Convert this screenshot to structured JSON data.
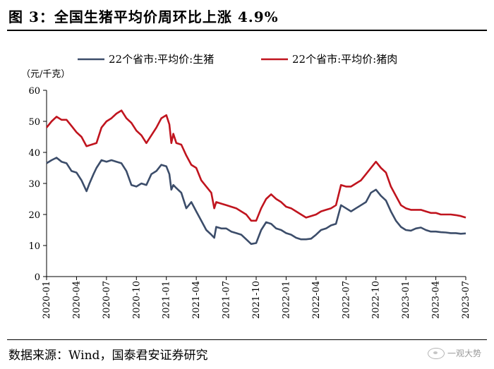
{
  "header": {
    "title": "图 3：全国生猪平均价周环比上涨 4.9%"
  },
  "footer": {
    "source": "数据来源：Wind，国泰君安证券研究",
    "watermark": "一观大势"
  },
  "chart_data": {
    "type": "line",
    "ylabel": "（元/千克）",
    "ylim": [
      0,
      60
    ],
    "yticks": [
      0,
      10,
      20,
      30,
      40,
      50,
      60
    ],
    "xlim": [
      "2020-01",
      "2023-07"
    ],
    "xticks": [
      "2020-01",
      "2020-04",
      "2020-07",
      "2020-10",
      "2021-01",
      "2021-04",
      "2021-07",
      "2021-10",
      "2022-01",
      "2022-04",
      "2022-07",
      "2022-10",
      "2023-01",
      "2023-04",
      "2023-07"
    ],
    "legend_position": "top",
    "grid": false,
    "series": [
      {
        "name": "22个省市:平均价:生猪",
        "color": "#3c4d6a",
        "points": [
          [
            "2020-01",
            36.5
          ],
          [
            "2020-01.5",
            37.5
          ],
          [
            "2020-02",
            38.3
          ],
          [
            "2020-02.5",
            37
          ],
          [
            "2020-03",
            36.5
          ],
          [
            "2020-03.5",
            34
          ],
          [
            "2020-04",
            33.5
          ],
          [
            "2020-04.5",
            31
          ],
          [
            "2020-05",
            27.5
          ],
          [
            "2020-05.3",
            30
          ],
          [
            "2020-05.7",
            33
          ],
          [
            "2020-06",
            35
          ],
          [
            "2020-06.5",
            37.5
          ],
          [
            "2020-07",
            37
          ],
          [
            "2020-07.5",
            37.5
          ],
          [
            "2020-08",
            37
          ],
          [
            "2020-08.5",
            36.5
          ],
          [
            "2020-09",
            34
          ],
          [
            "2020-09.5",
            29.5
          ],
          [
            "2020-10",
            29
          ],
          [
            "2020-10.5",
            30
          ],
          [
            "2020-11",
            29.5
          ],
          [
            "2020-11.5",
            33
          ],
          [
            "2020-12",
            34
          ],
          [
            "2020-12.5",
            36
          ],
          [
            "2021-01",
            35.5
          ],
          [
            "2021-01.3",
            33
          ],
          [
            "2021-01.5",
            28
          ],
          [
            "2021-01.7",
            29.5
          ],
          [
            "2021-02",
            28.5
          ],
          [
            "2021-02.5",
            27
          ],
          [
            "2021-03",
            22
          ],
          [
            "2021-03.5",
            24
          ],
          [
            "2021-04",
            21
          ],
          [
            "2021-04.5",
            18
          ],
          [
            "2021-05",
            15
          ],
          [
            "2021-05.5",
            13.5
          ],
          [
            "2021-05.8",
            12.5
          ],
          [
            "2021-06",
            16
          ],
          [
            "2021-06.5",
            15.5
          ],
          [
            "2021-07",
            15.5
          ],
          [
            "2021-07.5",
            14.5
          ],
          [
            "2021-08",
            14
          ],
          [
            "2021-08.5",
            13.5
          ],
          [
            "2021-09",
            12
          ],
          [
            "2021-09.5",
            10.5
          ],
          [
            "2021-10",
            10.8
          ],
          [
            "2021-10.5",
            15
          ],
          [
            "2021-11",
            17.5
          ],
          [
            "2021-11.5",
            17
          ],
          [
            "2021-12",
            15.5
          ],
          [
            "2021-12.5",
            15
          ],
          [
            "2022-01",
            14
          ],
          [
            "2022-01.5",
            13.5
          ],
          [
            "2022-02",
            12.5
          ],
          [
            "2022-02.5",
            12
          ],
          [
            "2022-03",
            12
          ],
          [
            "2022-03.5",
            12.2
          ],
          [
            "2022-04",
            13.5
          ],
          [
            "2022-04.5",
            15
          ],
          [
            "2022-05",
            15.5
          ],
          [
            "2022-05.5",
            16.5
          ],
          [
            "2022-06",
            17
          ],
          [
            "2022-06.5",
            23
          ],
          [
            "2022-07",
            22
          ],
          [
            "2022-07.5",
            21
          ],
          [
            "2022-08",
            22
          ],
          [
            "2022-08.5",
            23
          ],
          [
            "2022-09",
            24
          ],
          [
            "2022-09.5",
            27
          ],
          [
            "2022-10",
            28
          ],
          [
            "2022-10.5",
            26
          ],
          [
            "2022-11",
            24.5
          ],
          [
            "2022-11.5",
            21
          ],
          [
            "2022-12",
            18
          ],
          [
            "2022-12.5",
            16
          ],
          [
            "2023-01",
            15
          ],
          [
            "2023-01.5",
            14.8
          ],
          [
            "2023-02",
            15.5
          ],
          [
            "2023-02.5",
            15.8
          ],
          [
            "2023-03",
            15
          ],
          [
            "2023-03.5",
            14.5
          ],
          [
            "2023-04",
            14.5
          ],
          [
            "2023-04.5",
            14.3
          ],
          [
            "2023-05",
            14.2
          ],
          [
            "2023-05.5",
            14
          ],
          [
            "2023-06",
            14
          ],
          [
            "2023-06.5",
            13.8
          ],
          [
            "2023-07",
            13.9
          ]
        ]
      },
      {
        "name": "22个省市:平均价:猪肉",
        "color": "#c0141e",
        "points": [
          [
            "2020-01",
            48
          ],
          [
            "2020-01.5",
            50
          ],
          [
            "2020-02",
            51.5
          ],
          [
            "2020-02.5",
            50.5
          ],
          [
            "2020-03",
            50.5
          ],
          [
            "2020-03.5",
            48.5
          ],
          [
            "2020-04",
            46.5
          ],
          [
            "2020-04.5",
            45
          ],
          [
            "2020-05",
            42
          ],
          [
            "2020-05.5",
            42.5
          ],
          [
            "2020-06",
            43
          ],
          [
            "2020-06.5",
            48
          ],
          [
            "2020-07",
            50
          ],
          [
            "2020-07.5",
            51
          ],
          [
            "2020-08",
            52.5
          ],
          [
            "2020-08.5",
            53.5
          ],
          [
            "2020-09",
            51
          ],
          [
            "2020-09.5",
            49.5
          ],
          [
            "2020-10",
            47
          ],
          [
            "2020-10.5",
            45.5
          ],
          [
            "2020-11",
            43
          ],
          [
            "2020-11.5",
            45.5
          ],
          [
            "2020-12",
            48
          ],
          [
            "2020-12.5",
            51
          ],
          [
            "2021-01",
            52
          ],
          [
            "2021-01.3",
            49
          ],
          [
            "2021-01.5",
            43
          ],
          [
            "2021-01.7",
            46
          ],
          [
            "2021-02",
            43
          ],
          [
            "2021-02.5",
            42.5
          ],
          [
            "2021-03",
            39
          ],
          [
            "2021-03.5",
            36
          ],
          [
            "2021-04",
            35
          ],
          [
            "2021-04.5",
            31
          ],
          [
            "2021-05",
            29
          ],
          [
            "2021-05.5",
            27
          ],
          [
            "2021-05.8",
            22
          ],
          [
            "2021-06",
            24
          ],
          [
            "2021-06.5",
            23.5
          ],
          [
            "2021-07",
            23
          ],
          [
            "2021-07.5",
            22.5
          ],
          [
            "2021-08",
            22
          ],
          [
            "2021-08.5",
            21
          ],
          [
            "2021-09",
            20
          ],
          [
            "2021-09.5",
            18
          ],
          [
            "2021-10",
            18
          ],
          [
            "2021-10.5",
            22
          ],
          [
            "2021-11",
            25
          ],
          [
            "2021-11.5",
            26.5
          ],
          [
            "2021-12",
            25
          ],
          [
            "2021-12.5",
            24
          ],
          [
            "2022-01",
            22.5
          ],
          [
            "2022-01.5",
            22
          ],
          [
            "2022-02",
            21
          ],
          [
            "2022-02.5",
            20
          ],
          [
            "2022-03",
            19
          ],
          [
            "2022-03.5",
            19.5
          ],
          [
            "2022-04",
            20
          ],
          [
            "2022-04.5",
            21
          ],
          [
            "2022-05",
            21.5
          ],
          [
            "2022-05.5",
            22
          ],
          [
            "2022-06",
            23
          ],
          [
            "2022-06.5",
            29.5
          ],
          [
            "2022-07",
            29
          ],
          [
            "2022-07.5",
            29
          ],
          [
            "2022-08",
            30
          ],
          [
            "2022-08.5",
            31
          ],
          [
            "2022-09",
            33
          ],
          [
            "2022-09.5",
            35
          ],
          [
            "2022-10",
            37
          ],
          [
            "2022-10.5",
            35
          ],
          [
            "2022-11",
            33.5
          ],
          [
            "2022-11.5",
            29
          ],
          [
            "2022-12",
            26
          ],
          [
            "2022-12.5",
            23
          ],
          [
            "2023-01",
            22
          ],
          [
            "2023-01.5",
            21.5
          ],
          [
            "2023-02",
            21.5
          ],
          [
            "2023-02.5",
            21.5
          ],
          [
            "2023-03",
            21
          ],
          [
            "2023-03.5",
            20.5
          ],
          [
            "2023-04",
            20.5
          ],
          [
            "2023-04.5",
            20
          ],
          [
            "2023-05",
            20
          ],
          [
            "2023-05.5",
            20
          ],
          [
            "2023-06",
            19.8
          ],
          [
            "2023-06.5",
            19.5
          ],
          [
            "2023-07",
            19
          ]
        ]
      }
    ]
  }
}
